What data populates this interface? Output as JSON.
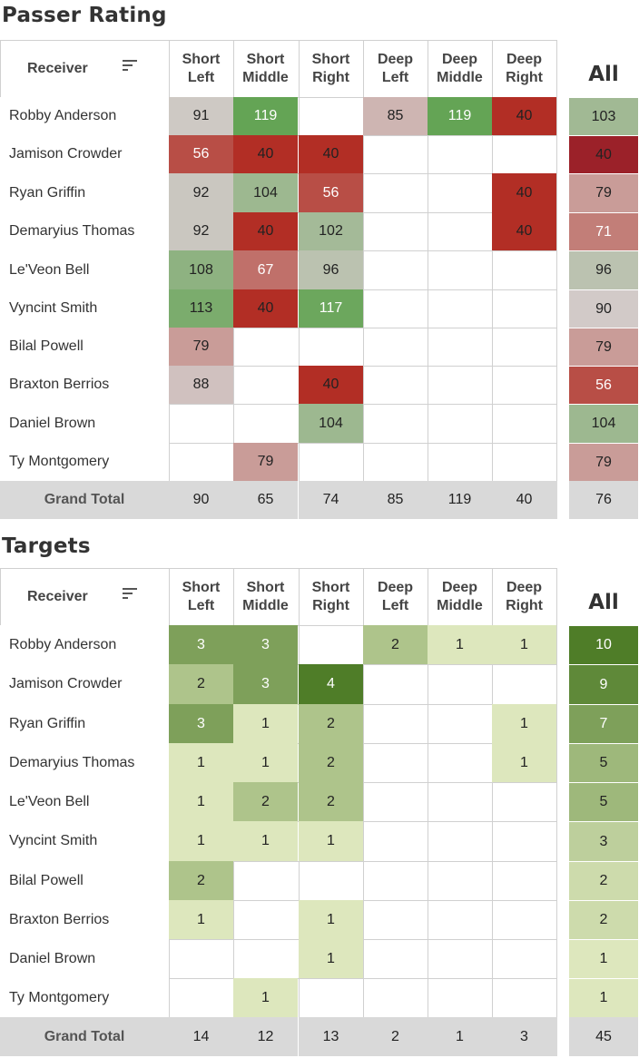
{
  "chart_data": [
    {
      "type": "table",
      "title": "Passer Rating",
      "row_header": "Receiver",
      "columns": [
        {
          "line1": "Short",
          "line2": "Left"
        },
        {
          "line1": "Short",
          "line2": "Middle"
        },
        {
          "line1": "Short",
          "line2": "Right"
        },
        {
          "line1": "Deep",
          "line2": "Left"
        },
        {
          "line1": "Deep",
          "line2": "Middle"
        },
        {
          "line1": "Deep",
          "line2": "Right"
        }
      ],
      "all_label": "All",
      "rows": [
        {
          "name": "Robby Anderson",
          "values": [
            91,
            119,
            null,
            85,
            119,
            40
          ],
          "all": 103
        },
        {
          "name": "Jamison Crowder",
          "values": [
            56,
            40,
            40,
            null,
            null,
            null
          ],
          "all": 40
        },
        {
          "name": "Ryan Griffin",
          "values": [
            92,
            104,
            56,
            null,
            null,
            40
          ],
          "all": 79
        },
        {
          "name": "Demaryius Thomas",
          "values": [
            92,
            40,
            102,
            null,
            null,
            40
          ],
          "all": 71
        },
        {
          "name": "Le'Veon Bell",
          "values": [
            108,
            67,
            96,
            null,
            null,
            null
          ],
          "all": 96
        },
        {
          "name": "Vyncint Smith",
          "values": [
            113,
            40,
            117,
            null,
            null,
            null
          ],
          "all": 90
        },
        {
          "name": "Bilal Powell",
          "values": [
            79,
            null,
            null,
            null,
            null,
            null
          ],
          "all": 79
        },
        {
          "name": "Braxton Berrios",
          "values": [
            88,
            null,
            40,
            null,
            null,
            null
          ],
          "all": 56
        },
        {
          "name": "Daniel Brown",
          "values": [
            null,
            null,
            104,
            null,
            null,
            null
          ],
          "all": 104
        },
        {
          "name": "Ty Montgomery",
          "values": [
            null,
            79,
            null,
            null,
            null,
            null
          ],
          "all": 79
        }
      ],
      "grand_total": {
        "label": "Grand Total",
        "values": [
          90,
          65,
          74,
          85,
          119,
          40
        ],
        "all": 76
      },
      "color_scale": "diverging: red (low) - grey (mid) - green (high)",
      "colors": {
        "red": "#b22e25",
        "mid": "#d2cac8",
        "green": "#64a455",
        "dark_red": "#9b2129"
      }
    },
    {
      "type": "table",
      "title": "Targets",
      "row_header": "Receiver",
      "columns": [
        {
          "line1": "Short",
          "line2": "Left"
        },
        {
          "line1": "Short",
          "line2": "Middle"
        },
        {
          "line1": "Short",
          "line2": "Right"
        },
        {
          "line1": "Deep",
          "line2": "Left"
        },
        {
          "line1": "Deep",
          "line2": "Middle"
        },
        {
          "line1": "Deep",
          "line2": "Right"
        }
      ],
      "all_label": "All",
      "rows": [
        {
          "name": "Robby Anderson",
          "values": [
            3,
            3,
            null,
            2,
            1,
            1
          ],
          "all": 10
        },
        {
          "name": "Jamison Crowder",
          "values": [
            2,
            3,
            4,
            null,
            null,
            null
          ],
          "all": 9
        },
        {
          "name": "Ryan Griffin",
          "values": [
            3,
            1,
            2,
            null,
            null,
            1
          ],
          "all": 7
        },
        {
          "name": "Demaryius Thomas",
          "values": [
            1,
            1,
            2,
            null,
            null,
            1
          ],
          "all": 5
        },
        {
          "name": "Le'Veon Bell",
          "values": [
            1,
            2,
            2,
            null,
            null,
            null
          ],
          "all": 5
        },
        {
          "name": "Vyncint Smith",
          "values": [
            1,
            1,
            1,
            null,
            null,
            null
          ],
          "all": 3
        },
        {
          "name": "Bilal Powell",
          "values": [
            2,
            null,
            null,
            null,
            null,
            null
          ],
          "all": 2
        },
        {
          "name": "Braxton Berrios",
          "values": [
            1,
            null,
            1,
            null,
            null,
            null
          ],
          "all": 2
        },
        {
          "name": "Daniel Brown",
          "values": [
            null,
            null,
            1,
            null,
            null,
            null
          ],
          "all": 1
        },
        {
          "name": "Ty Montgomery",
          "values": [
            null,
            1,
            null,
            null,
            null,
            null
          ],
          "all": 1
        }
      ],
      "grand_total": {
        "label": "Grand Total",
        "values": [
          14,
          12,
          13,
          2,
          1,
          3
        ],
        "all": 45
      },
      "color_scale": "sequential green: light (low) - dark (high)",
      "colors": {
        "light": "#dde7bd",
        "dark": "#4f7d28"
      }
    }
  ]
}
